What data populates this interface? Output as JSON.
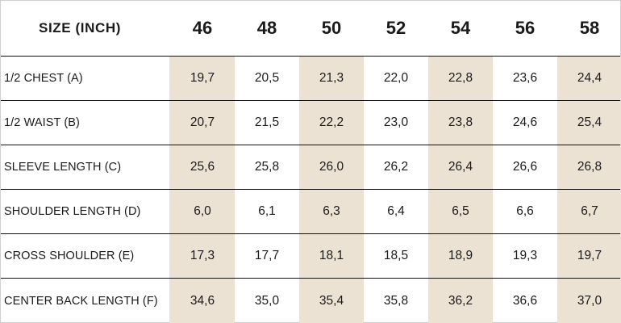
{
  "table": {
    "header_label": "SIZE (INCH)",
    "sizes": [
      "46",
      "48",
      "50",
      "52",
      "54",
      "56",
      "58"
    ],
    "shade_color": "#ece2d4",
    "shaded_columns": [
      0,
      2,
      4,
      6
    ],
    "rows": [
      {
        "label": "1/2 CHEST (A)",
        "values": [
          "19,7",
          "20,5",
          "21,3",
          "22,0",
          "22,8",
          "23,6",
          "24,4"
        ]
      },
      {
        "label": "1/2 WAIST (B)",
        "values": [
          "20,7",
          "21,5",
          "22,2",
          "23,0",
          "23,8",
          "24,6",
          "25,4"
        ]
      },
      {
        "label": "SLEEVE LENGTH (C)",
        "values": [
          "25,6",
          "25,8",
          "26,0",
          "26,2",
          "26,4",
          "26,6",
          "26,8"
        ]
      },
      {
        "label": "SHOULDER LENGTH (D)",
        "values": [
          "6,0",
          "6,1",
          "6,3",
          "6,4",
          "6,5",
          "6,6",
          "6,7"
        ]
      },
      {
        "label": "CROSS SHOULDER (E)",
        "values": [
          "17,3",
          "17,7",
          "18,1",
          "18,5",
          "18,9",
          "19,3",
          "19,7"
        ]
      },
      {
        "label": "CENTER BACK LENGTH (F)",
        "values": [
          "34,6",
          "35,0",
          "35,4",
          "35,8",
          "36,2",
          "36,6",
          "37,0"
        ]
      }
    ]
  }
}
